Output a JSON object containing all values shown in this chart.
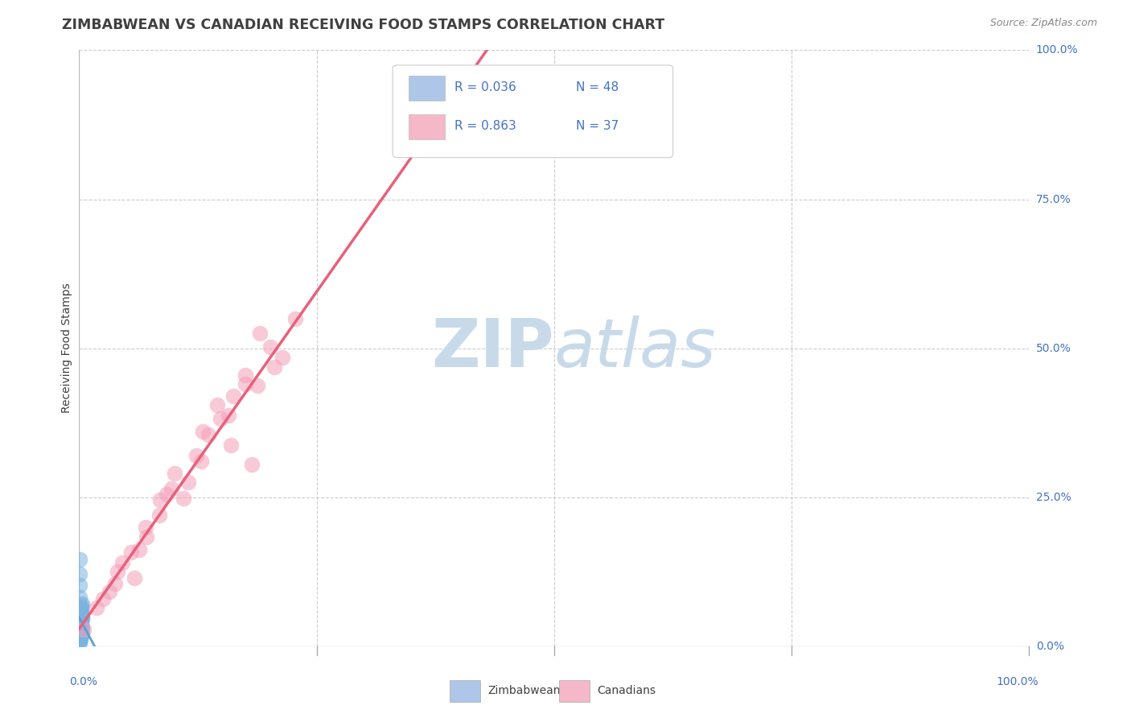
{
  "title": "ZIMBABWEAN VS CANADIAN RECEIVING FOOD STAMPS CORRELATION CHART",
  "source": "Source: ZipAtlas.com",
  "ylabel": "Receiving Food Stamps",
  "ytick_labels": [
    "0.0%",
    "25.0%",
    "50.0%",
    "75.0%",
    "100.0%"
  ],
  "ytick_values": [
    0,
    25,
    50,
    75,
    100
  ],
  "legend_entries": [
    {
      "label": "Zimbabweans",
      "color": "#aec6e8",
      "R": 0.036,
      "N": 48
    },
    {
      "label": "Canadians",
      "color": "#f4b8c8",
      "R": 0.863,
      "N": 37
    }
  ],
  "bg_color": "#ffffff",
  "plot_bg_color": "#ffffff",
  "grid_color": "#cccccc",
  "zimbabwean_dot_color": "#7ab3e0",
  "canadian_dot_color": "#f4a0b8",
  "zimbabwean_line_color": "#5a9fd4",
  "canadian_line_color": "#e8607a",
  "watermark_color": "#c8daea",
  "title_color": "#404040",
  "axis_label_color": "#4472c4",
  "stat_text_color": "#4472c4",
  "zim_x": [
    0.05,
    0.08,
    0.12,
    0.15,
    0.18,
    0.22,
    0.25,
    0.28,
    0.3,
    0.33,
    0.05,
    0.07,
    0.1,
    0.13,
    0.16,
    0.2,
    0.23,
    0.26,
    0.29,
    0.32,
    0.04,
    0.06,
    0.09,
    0.11,
    0.14,
    0.17,
    0.21,
    0.24,
    0.27,
    0.31,
    0.02,
    0.03,
    0.05,
    0.07,
    0.1,
    0.12,
    0.15,
    0.19,
    0.22,
    0.25,
    0.01,
    0.02,
    0.04,
    0.06,
    0.08,
    0.11,
    0.14,
    0.17
  ],
  "zim_y": [
    3.5,
    2.8,
    5.2,
    4.1,
    1.8,
    6.3,
    3.2,
    7.1,
    2.5,
    4.8,
    8.2,
    1.5,
    3.9,
    5.6,
    2.1,
    4.4,
    6.8,
    1.9,
    3.3,
    5.0,
    10.2,
    0.8,
    2.6,
    4.3,
    6.1,
    1.2,
    3.7,
    5.4,
    2.9,
    4.6,
    12.1,
    1.1,
    2.3,
    3.8,
    5.9,
    1.7,
    4.0,
    6.5,
    3.1,
    5.3,
    14.5,
    0.6,
    2.0,
    3.4,
    5.7,
    1.4,
    3.6,
    6.2
  ],
  "can_x": [
    0.5,
    1.8,
    3.2,
    4.5,
    5.8,
    7.1,
    8.4,
    9.7,
    11.0,
    12.3,
    13.6,
    14.9,
    16.2,
    17.5,
    18.8,
    20.1,
    21.4,
    22.7,
    2.5,
    4.0,
    5.5,
    7.0,
    8.5,
    10.0,
    11.5,
    13.0,
    14.5,
    16.0,
    17.5,
    19.0,
    20.5,
    3.8,
    6.3,
    9.2,
    12.8,
    15.7,
    18.2
  ],
  "can_y": [
    2.8,
    6.5,
    9.2,
    14.0,
    11.5,
    18.3,
    22.0,
    26.5,
    24.8,
    32.0,
    35.5,
    38.2,
    42.0,
    45.5,
    43.8,
    50.2,
    48.5,
    55.0,
    8.0,
    12.5,
    15.8,
    20.0,
    24.5,
    29.0,
    27.5,
    36.0,
    40.5,
    33.8,
    44.0,
    52.5,
    46.8,
    10.5,
    16.2,
    25.5,
    31.0,
    38.8,
    30.5
  ]
}
